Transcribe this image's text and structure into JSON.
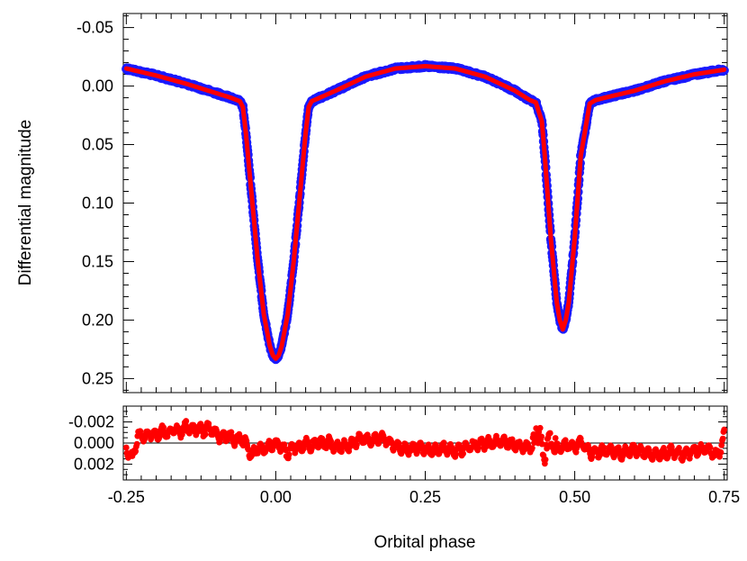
{
  "chart_data": [
    {
      "panel": "light-curve",
      "type": "scatter",
      "ylabel": "Differential magnitude",
      "xlim": [
        -0.255,
        0.755
      ],
      "ylim": [
        -0.062,
        0.262
      ],
      "y_inverted": true,
      "yticks": [
        -0.05,
        0.0,
        0.05,
        0.1,
        0.15,
        0.2,
        0.25
      ],
      "ytick_labels": [
        "-0.05",
        "0.00",
        "0.05",
        "0.10",
        "0.15",
        "0.20",
        "0.25"
      ],
      "x_minor_step": 0.025,
      "y_minor_step": 0.01,
      "series": [
        {
          "name": "observations",
          "style": "points",
          "color": "#1a1aff",
          "x": [
            -0.25,
            -0.2,
            -0.15,
            -0.1,
            -0.075,
            -0.06,
            -0.055,
            -0.05,
            -0.04,
            -0.03,
            -0.02,
            -0.01,
            -0.005,
            0.0,
            0.005,
            0.01,
            0.02,
            0.03,
            0.04,
            0.05,
            0.055,
            0.06,
            0.1,
            0.15,
            0.2,
            0.25,
            0.3,
            0.35,
            0.4,
            0.425,
            0.435,
            0.445,
            0.45,
            0.46,
            0.47,
            0.475,
            0.48,
            0.485,
            0.49,
            0.5,
            0.51,
            0.52,
            0.525,
            0.535,
            0.55,
            0.6,
            0.65,
            0.7,
            0.75
          ],
          "y": [
            -0.015,
            -0.009,
            -0.002,
            0.006,
            0.01,
            0.013,
            0.018,
            0.04,
            0.095,
            0.15,
            0.195,
            0.222,
            0.23,
            0.233,
            0.23,
            0.222,
            0.195,
            0.15,
            0.095,
            0.04,
            0.018,
            0.013,
            0.004,
            -0.008,
            -0.015,
            -0.017,
            -0.015,
            -0.008,
            0.004,
            0.012,
            0.014,
            0.03,
            0.06,
            0.13,
            0.185,
            0.2,
            0.208,
            0.2,
            0.185,
            0.13,
            0.06,
            0.03,
            0.015,
            0.012,
            0.01,
            0.004,
            -0.004,
            -0.01,
            -0.014
          ]
        },
        {
          "name": "model",
          "style": "line",
          "color": "#ff0000",
          "x": [
            -0.25,
            -0.2,
            -0.15,
            -0.1,
            -0.075,
            -0.06,
            -0.055,
            -0.05,
            -0.04,
            -0.03,
            -0.02,
            -0.01,
            -0.005,
            0.0,
            0.005,
            0.01,
            0.02,
            0.03,
            0.04,
            0.05,
            0.055,
            0.06,
            0.1,
            0.15,
            0.2,
            0.25,
            0.3,
            0.35,
            0.4,
            0.425,
            0.435,
            0.445,
            0.45,
            0.46,
            0.47,
            0.475,
            0.48,
            0.485,
            0.49,
            0.5,
            0.51,
            0.52,
            0.525,
            0.535,
            0.55,
            0.6,
            0.65,
            0.7,
            0.75
          ],
          "y": [
            -0.015,
            -0.009,
            -0.002,
            0.006,
            0.01,
            0.013,
            0.018,
            0.04,
            0.095,
            0.15,
            0.195,
            0.222,
            0.23,
            0.233,
            0.23,
            0.222,
            0.195,
            0.15,
            0.095,
            0.04,
            0.018,
            0.013,
            0.004,
            -0.008,
            -0.015,
            -0.017,
            -0.015,
            -0.008,
            0.004,
            0.012,
            0.014,
            0.03,
            0.06,
            0.13,
            0.185,
            0.2,
            0.208,
            0.2,
            0.185,
            0.13,
            0.06,
            0.03,
            0.015,
            0.012,
            0.01,
            0.004,
            -0.004,
            -0.01,
            -0.014
          ]
        }
      ]
    },
    {
      "panel": "residuals",
      "type": "scatter",
      "xlabel": "Orbital phase",
      "xlim": [
        -0.255,
        0.755
      ],
      "ylim": [
        -0.0035,
        0.0035
      ],
      "y_inverted": true,
      "xticks": [
        -0.25,
        0.0,
        0.25,
        0.5,
        0.75
      ],
      "xtick_labels": [
        "-0.25",
        "0.00",
        "0.25",
        "0.50",
        "0.75"
      ],
      "yticks": [
        -0.002,
        0.0,
        0.002
      ],
      "ytick_labels": [
        "-0.002",
        "0.000",
        "0.002"
      ],
      "reference_line": 0.0,
      "series": [
        {
          "name": "residuals",
          "style": "points",
          "color": "#ff0000",
          "x": [
            -0.25,
            -0.24,
            -0.23,
            -0.22,
            -0.21,
            -0.2,
            -0.19,
            -0.18,
            -0.17,
            -0.16,
            -0.15,
            -0.14,
            -0.13,
            -0.12,
            -0.11,
            -0.1,
            -0.09,
            -0.08,
            -0.07,
            -0.06,
            -0.05,
            -0.04,
            -0.03,
            -0.02,
            -0.01,
            0.0,
            0.01,
            0.02,
            0.03,
            0.04,
            0.05,
            0.06,
            0.07,
            0.08,
            0.09,
            0.1,
            0.12,
            0.14,
            0.16,
            0.18,
            0.2,
            0.22,
            0.24,
            0.26,
            0.28,
            0.3,
            0.32,
            0.34,
            0.36,
            0.38,
            0.4,
            0.42,
            0.43,
            0.44,
            0.445,
            0.45,
            0.455,
            0.46,
            0.47,
            0.48,
            0.49,
            0.5,
            0.51,
            0.52,
            0.53,
            0.54,
            0.56,
            0.58,
            0.6,
            0.62,
            0.64,
            0.66,
            0.68,
            0.7,
            0.72,
            0.74,
            0.75
          ],
          "y": [
            0.0005,
            0.0015,
            -0.0008,
            -0.0005,
            -0.001,
            -0.0007,
            -0.0012,
            -0.0009,
            -0.0013,
            -0.001,
            -0.0016,
            -0.0012,
            -0.0014,
            -0.0011,
            -0.0015,
            -0.0008,
            -0.0005,
            -0.0007,
            -0.0003,
            -0.0004,
            0.0,
            0.0012,
            0.0004,
            0.0006,
            0.0002,
            0.0,
            0.0004,
            0.001,
            0.0003,
            0.0005,
            0.0001,
            0.0003,
            -0.0002,
            0.0001,
            -0.0001,
            0.0004,
            0.0003,
            -0.0004,
            -0.0002,
            -0.0005,
            0.0003,
            0.0006,
            0.0004,
            0.0007,
            0.0005,
            0.0008,
            0.0004,
            0.0001,
            0.0,
            -0.0002,
            0.0002,
            0.0005,
            0.0003,
            -0.0015,
            0.0006,
            0.001,
            -0.0008,
            0.0004,
            0.0006,
            0.0003,
            0.0001,
            0.0004,
            -0.0002,
            0.0006,
            0.001,
            0.0008,
            0.0007,
            0.001,
            0.0006,
            0.0009,
            0.0012,
            0.0008,
            0.0011,
            0.0007,
            0.0005,
            0.0012,
            -0.0007
          ]
        }
      ]
    }
  ]
}
